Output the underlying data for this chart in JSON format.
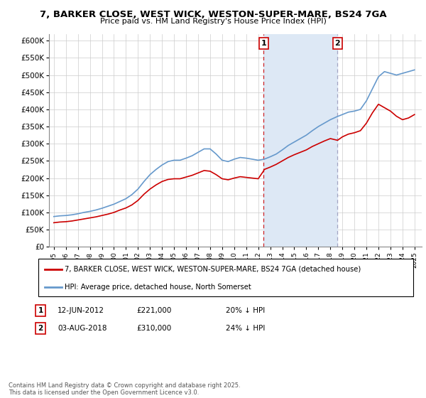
{
  "title": "7, BARKER CLOSE, WEST WICK, WESTON-SUPER-MARE, BS24 7GA",
  "subtitle": "Price paid vs. HM Land Registry's House Price Index (HPI)",
  "legend_label_red": "7, BARKER CLOSE, WEST WICK, WESTON-SUPER-MARE, BS24 7GA (detached house)",
  "legend_label_blue": "HPI: Average price, detached house, North Somerset",
  "ann1_date": "12-JUN-2012",
  "ann1_price": "£221,000",
  "ann1_hpi": "20% ↓ HPI",
  "ann2_date": "03-AUG-2018",
  "ann2_price": "£310,000",
  "ann2_hpi": "24% ↓ HPI",
  "footer": "Contains HM Land Registry data © Crown copyright and database right 2025.\nThis data is licensed under the Open Government Licence v3.0.",
  "red_color": "#cc0000",
  "blue_color": "#6699cc",
  "shade_color": "#dde8f5",
  "background_color": "#ffffff",
  "ylim_max": 620000,
  "sale1_year": 2012.45,
  "sale2_year": 2018.6,
  "years_hpi": [
    1995.0,
    1995.5,
    1996.0,
    1996.5,
    1997.0,
    1997.5,
    1998.0,
    1998.5,
    1999.0,
    1999.5,
    2000.0,
    2000.5,
    2001.0,
    2001.5,
    2002.0,
    2002.5,
    2003.0,
    2003.5,
    2004.0,
    2004.5,
    2005.0,
    2005.5,
    2006.0,
    2006.5,
    2007.0,
    2007.5,
    2008.0,
    2008.5,
    2009.0,
    2009.5,
    2010.0,
    2010.5,
    2011.0,
    2011.5,
    2012.0,
    2012.5,
    2013.0,
    2013.5,
    2014.0,
    2014.5,
    2015.0,
    2015.5,
    2016.0,
    2016.5,
    2017.0,
    2017.5,
    2018.0,
    2018.5,
    2019.0,
    2019.5,
    2020.0,
    2020.5,
    2021.0,
    2021.5,
    2022.0,
    2022.5,
    2023.0,
    2023.5,
    2024.0,
    2024.5,
    2025.0
  ],
  "hpi_values": [
    88000,
    90000,
    91000,
    93000,
    96000,
    100000,
    103000,
    107000,
    112000,
    118000,
    124000,
    132000,
    140000,
    152000,
    168000,
    190000,
    210000,
    225000,
    238000,
    248000,
    252000,
    252000,
    258000,
    265000,
    275000,
    285000,
    285000,
    270000,
    252000,
    248000,
    255000,
    260000,
    258000,
    255000,
    252000,
    255000,
    262000,
    270000,
    282000,
    295000,
    305000,
    315000,
    325000,
    338000,
    350000,
    360000,
    370000,
    378000,
    385000,
    392000,
    395000,
    400000,
    425000,
    460000,
    495000,
    510000,
    505000,
    500000,
    505000,
    510000,
    515000
  ],
  "years_red": [
    1995.0,
    1995.5,
    1996.0,
    1996.5,
    1997.0,
    1997.5,
    1998.0,
    1998.5,
    1999.0,
    1999.5,
    2000.0,
    2000.5,
    2001.0,
    2001.5,
    2002.0,
    2002.5,
    2003.0,
    2003.5,
    2004.0,
    2004.5,
    2005.0,
    2005.5,
    2006.0,
    2006.5,
    2007.0,
    2007.5,
    2008.0,
    2008.5,
    2009.0,
    2009.5,
    2010.0,
    2010.5,
    2011.0,
    2011.5,
    2012.0,
    2012.45,
    2012.45,
    2012.5,
    2013.0,
    2013.5,
    2014.0,
    2014.5,
    2015.0,
    2015.5,
    2016.0,
    2016.5,
    2017.0,
    2017.5,
    2018.0,
    2018.6,
    2018.6,
    2019.0,
    2019.5,
    2020.0,
    2020.5,
    2021.0,
    2021.5,
    2022.0,
    2022.5,
    2023.0,
    2023.5,
    2024.0,
    2024.5,
    2025.0
  ],
  "red_values": [
    70000,
    72000,
    73000,
    75000,
    78000,
    81000,
    84000,
    87000,
    91000,
    95000,
    100000,
    107000,
    113000,
    122000,
    135000,
    153000,
    168000,
    180000,
    190000,
    196000,
    198000,
    198000,
    203000,
    208000,
    215000,
    222000,
    220000,
    210000,
    198000,
    195000,
    200000,
    204000,
    202000,
    200000,
    198000,
    221000,
    221000,
    225000,
    232000,
    240000,
    250000,
    260000,
    268000,
    275000,
    282000,
    292000,
    300000,
    308000,
    315000,
    310000,
    310000,
    320000,
    328000,
    332000,
    338000,
    360000,
    390000,
    415000,
    405000,
    395000,
    380000,
    370000,
    375000,
    385000
  ]
}
